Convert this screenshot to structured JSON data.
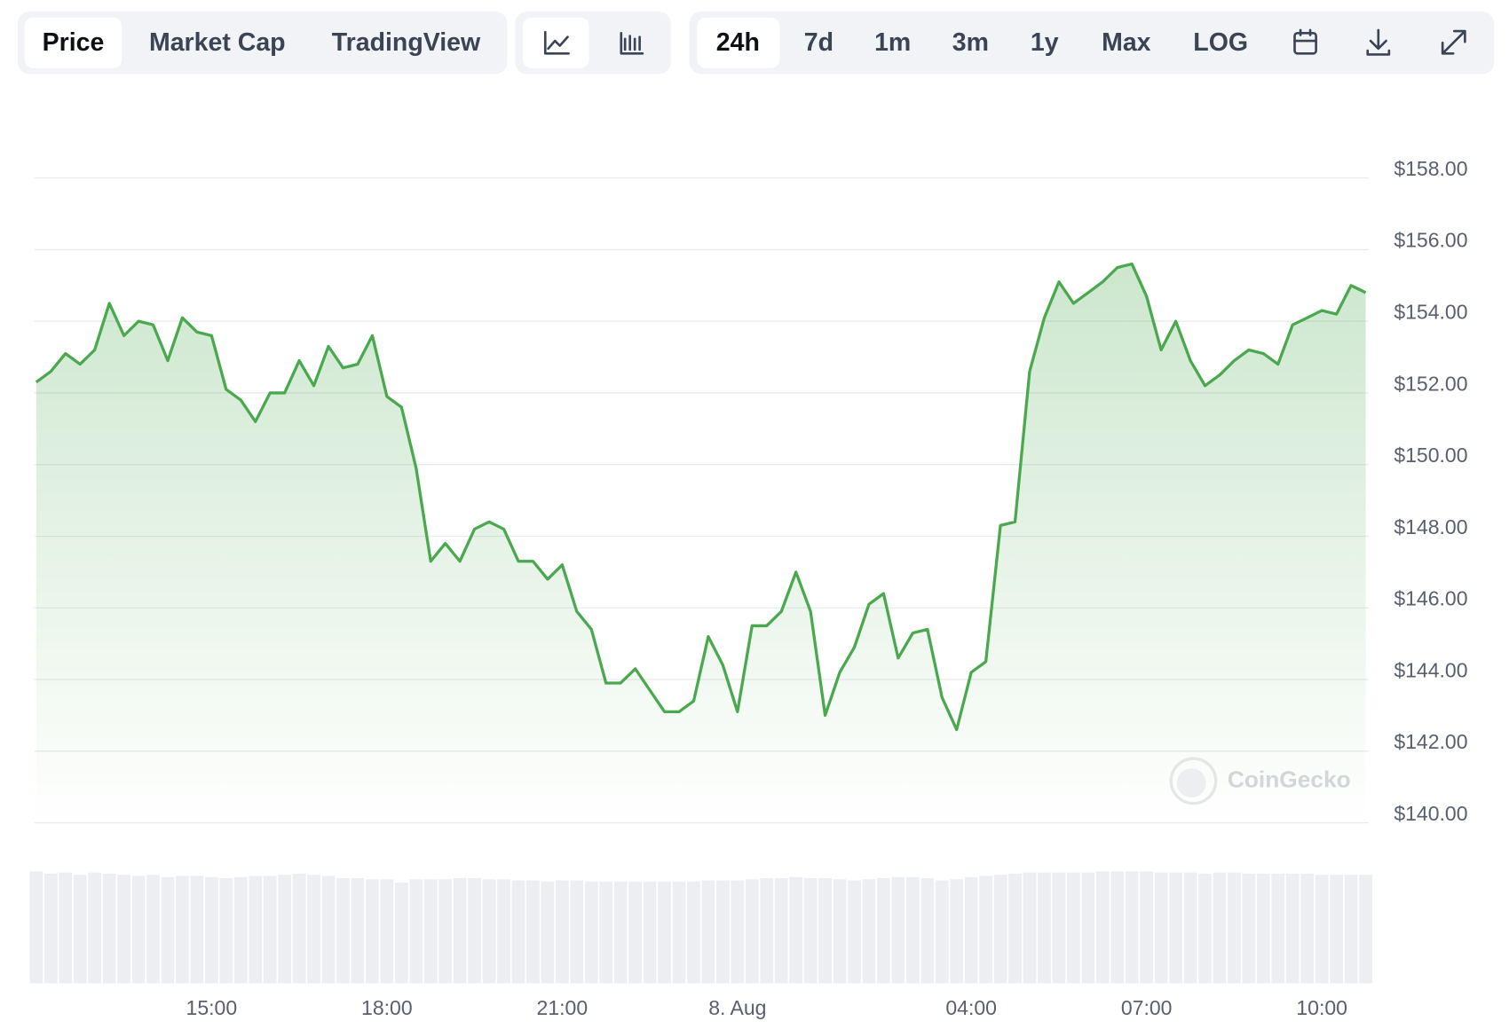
{
  "toolbar": {
    "views": [
      "Price",
      "Market Cap",
      "TradingView"
    ],
    "ranges": [
      "24h",
      "7d",
      "1m",
      "3m",
      "1y",
      "Max",
      "LOG"
    ]
  },
  "chart_data": {
    "type": "area",
    "watermark": "CoinGecko",
    "color": "#4aa84e",
    "volume_color": "#eceef2",
    "grid": true,
    "x": [
      12.0,
      12.25,
      12.5,
      12.75,
      13.0,
      13.25,
      13.5,
      13.75,
      14.0,
      14.25,
      14.5,
      14.75,
      15.0,
      15.25,
      15.5,
      15.75,
      16.0,
      16.25,
      16.5,
      16.75,
      17.0,
      17.25,
      17.5,
      17.75,
      18.0,
      18.25,
      18.5,
      18.75,
      19.0,
      19.25,
      19.5,
      19.75,
      20.0,
      20.25,
      20.5,
      20.75,
      21.0,
      21.25,
      21.5,
      21.75,
      22.0,
      22.25,
      22.5,
      22.75,
      23.0,
      23.25,
      23.5,
      23.75,
      24.0,
      24.25,
      24.5,
      24.75,
      25.0,
      25.25,
      25.5,
      25.75,
      26.0,
      26.25,
      26.5,
      26.75,
      27.0,
      27.25,
      27.5,
      27.75,
      28.0,
      28.25,
      28.5,
      28.75,
      29.0,
      29.25,
      29.5,
      29.75,
      30.0,
      30.25,
      30.5,
      30.75,
      31.0,
      31.25,
      31.5,
      31.75,
      32.0,
      32.25,
      32.5,
      32.75,
      33.0,
      33.25,
      33.5,
      33.75,
      34.0,
      34.25,
      34.5,
      34.75
    ],
    "values": [
      152.3,
      152.6,
      153.1,
      152.8,
      153.2,
      154.5,
      153.6,
      154.0,
      153.9,
      152.9,
      154.1,
      153.7,
      153.6,
      152.1,
      151.8,
      151.2,
      152.0,
      152.0,
      152.9,
      152.2,
      153.3,
      152.7,
      152.8,
      153.6,
      151.9,
      151.6,
      149.9,
      147.3,
      147.8,
      147.3,
      148.2,
      148.4,
      148.2,
      147.3,
      147.3,
      146.8,
      147.2,
      145.9,
      145.4,
      143.9,
      143.9,
      144.3,
      143.7,
      143.1,
      143.1,
      143.4,
      145.2,
      144.4,
      143.1,
      145.5,
      145.5,
      145.9,
      147.0,
      145.9,
      143.0,
      144.2,
      144.9,
      146.1,
      146.4,
      144.6,
      145.3,
      145.4,
      143.5,
      142.6,
      144.2,
      144.5,
      148.3,
      148.4,
      152.6,
      154.1,
      155.1,
      154.5,
      154.8,
      155.1,
      155.5,
      155.6,
      154.7,
      153.2,
      154.0,
      152.9,
      152.2,
      152.5,
      152.9,
      153.2,
      153.1,
      152.8,
      153.9,
      154.1,
      154.3,
      154.2,
      155.0,
      154.8
    ],
    "volume": [
      100,
      98,
      99,
      97,
      99,
      98,
      97,
      96,
      97,
      95,
      96,
      96,
      95,
      94,
      95,
      96,
      96,
      97,
      98,
      97,
      96,
      94,
      94,
      93,
      93,
      90,
      93,
      93,
      93,
      94,
      94,
      93,
      93,
      92,
      92,
      91,
      92,
      92,
      91,
      91,
      91,
      91,
      91,
      91,
      91,
      91,
      92,
      92,
      92,
      93,
      94,
      94,
      95,
      94,
      94,
      93,
      92,
      93,
      94,
      95,
      95,
      94,
      92,
      93,
      95,
      96,
      97,
      98,
      99,
      99,
      99,
      99,
      99,
      100,
      100,
      100,
      100,
      99,
      99,
      99,
      98,
      99,
      99,
      98,
      98,
      98,
      98,
      98,
      97,
      97,
      97,
      97
    ],
    "xlim": [
      12.0,
      34.75
    ],
    "xticks": [
      {
        "value": 15,
        "label": "15:00"
      },
      {
        "value": 18,
        "label": "18:00"
      },
      {
        "value": 21,
        "label": "21:00"
      },
      {
        "value": 24,
        "label": "8. Aug"
      },
      {
        "value": 28,
        "label": "04:00"
      },
      {
        "value": 31,
        "label": "07:00"
      },
      {
        "value": 34,
        "label": "10:00"
      }
    ],
    "ylim": [
      140,
      158
    ],
    "yticks": [
      {
        "value": 140,
        "label": "$140.00"
      },
      {
        "value": 142,
        "label": "$142.00"
      },
      {
        "value": 144,
        "label": "$144.00"
      },
      {
        "value": 146,
        "label": "$146.00"
      },
      {
        "value": 148,
        "label": "$148.00"
      },
      {
        "value": 150,
        "label": "$150.00"
      },
      {
        "value": 152,
        "label": "$152.00"
      },
      {
        "value": 154,
        "label": "$154.00"
      },
      {
        "value": 156,
        "label": "$156.00"
      },
      {
        "value": 158,
        "label": "$158.00"
      }
    ]
  }
}
